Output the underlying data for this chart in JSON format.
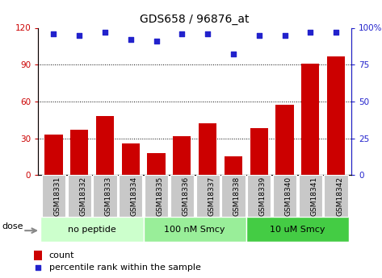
{
  "title": "GDS658 / 96876_at",
  "samples": [
    "GSM18331",
    "GSM18332",
    "GSM18333",
    "GSM18334",
    "GSM18335",
    "GSM18336",
    "GSM18337",
    "GSM18338",
    "GSM18339",
    "GSM18340",
    "GSM18341",
    "GSM18342"
  ],
  "count_values": [
    33,
    37,
    48,
    26,
    18,
    32,
    42,
    15,
    38,
    57,
    91,
    97
  ],
  "percentile_values": [
    96,
    95,
    97,
    92,
    91,
    96,
    96,
    82,
    95,
    95,
    97,
    97
  ],
  "groups": [
    {
      "label": "no peptide",
      "start": 0,
      "end": 3,
      "color": "#ccffcc"
    },
    {
      "label": "100 nM Smcy",
      "start": 4,
      "end": 7,
      "color": "#99ee99"
    },
    {
      "label": "10 uM Smcy",
      "start": 8,
      "end": 11,
      "color": "#44cc44"
    }
  ],
  "bar_color": "#cc0000",
  "dot_color": "#2222cc",
  "left_axis_color": "#cc0000",
  "right_axis_color": "#2222cc",
  "ylim_left": [
    0,
    120
  ],
  "ylim_right": [
    0,
    100
  ],
  "yticks_left": [
    0,
    30,
    60,
    90,
    120
  ],
  "ytick_labels_left": [
    "0",
    "30",
    "60",
    "90",
    "120"
  ],
  "yticks_right": [
    0,
    25,
    50,
    75,
    100
  ],
  "ytick_labels_right": [
    "0",
    "25",
    "50",
    "75",
    "100%"
  ],
  "grid_values": [
    30,
    60,
    90
  ],
  "bar_width": 0.7,
  "xlabel_fontsize": 6.5,
  "title_fontsize": 10,
  "tick_gray": "#c8c8c8"
}
